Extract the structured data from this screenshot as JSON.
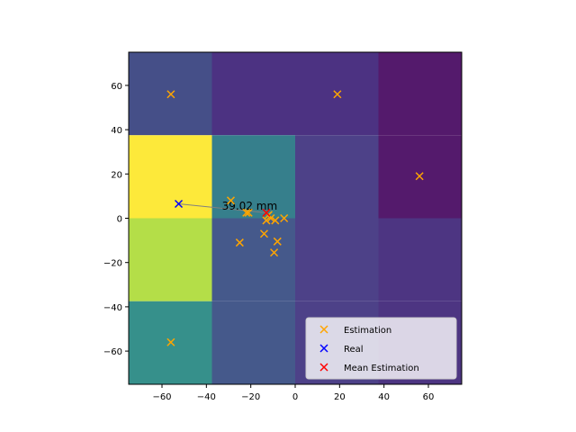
{
  "chart_data": {
    "type": "scatter",
    "title": "",
    "xlabel": "",
    "ylabel": "",
    "xlim": [
      -75,
      75
    ],
    "ylim": [
      -75,
      75
    ],
    "xticks": [
      -60,
      -40,
      -20,
      0,
      20,
      40,
      60
    ],
    "yticks": [
      -60,
      -40,
      -20,
      0,
      20,
      40,
      60
    ],
    "xtick_labels": [
      "−60",
      "−40",
      "−20",
      "0",
      "20",
      "40",
      "60"
    ],
    "ytick_labels": [
      "−60",
      "−40",
      "−20",
      "0",
      "20",
      "40",
      "60"
    ],
    "heatmap": {
      "x_edges": [
        -75,
        -37.5,
        0,
        37.5,
        75
      ],
      "y_edges": [
        75,
        37.5,
        0,
        -37.5,
        -75
      ],
      "cell_colors": [
        [
          "#454f88",
          "#4c3282",
          "#4c3282",
          "#541a6c"
        ],
        [
          "#fde93a",
          "#367f8c",
          "#4d4188",
          "#541a6c"
        ],
        [
          "#b4de48",
          "#45598b",
          "#4d4188",
          "#4d3582"
        ],
        [
          "#36908b",
          "#45598b",
          "#4d4188",
          "#4d3582"
        ]
      ]
    },
    "series": [
      {
        "name": "Estimation",
        "color": "#ffa500",
        "marker": "x",
        "points": [
          [
            -56,
            56
          ],
          [
            19,
            56
          ],
          [
            56,
            19
          ],
          [
            -56,
            -56
          ],
          [
            -29,
            8
          ],
          [
            -22,
            2.5
          ],
          [
            -21,
            2.5
          ],
          [
            -25,
            -11
          ],
          [
            -14,
            -7
          ],
          [
            -13,
            -1
          ],
          [
            -11,
            0
          ],
          [
            -9,
            -1
          ],
          [
            -5,
            0
          ],
          [
            -8,
            -10.5
          ],
          [
            -9.5,
            -15.5
          ],
          [
            -12,
            1.5
          ]
        ]
      },
      {
        "name": "Real",
        "color": "#0000ff",
        "marker": "x",
        "points": [
          [
            -52.5,
            6.5
          ]
        ]
      },
      {
        "name": "Mean Estimation",
        "color": "#ff0000",
        "marker": "x",
        "points": [
          [
            -13,
            2.5
          ]
        ]
      }
    ],
    "annotation": {
      "text": "39.02 mm",
      "line_from": [
        -52.5,
        6.5
      ],
      "line_to": [
        -13,
        2.5
      ],
      "text_at": [
        -33,
        5.5
      ]
    },
    "legend_position": "lower-right"
  }
}
